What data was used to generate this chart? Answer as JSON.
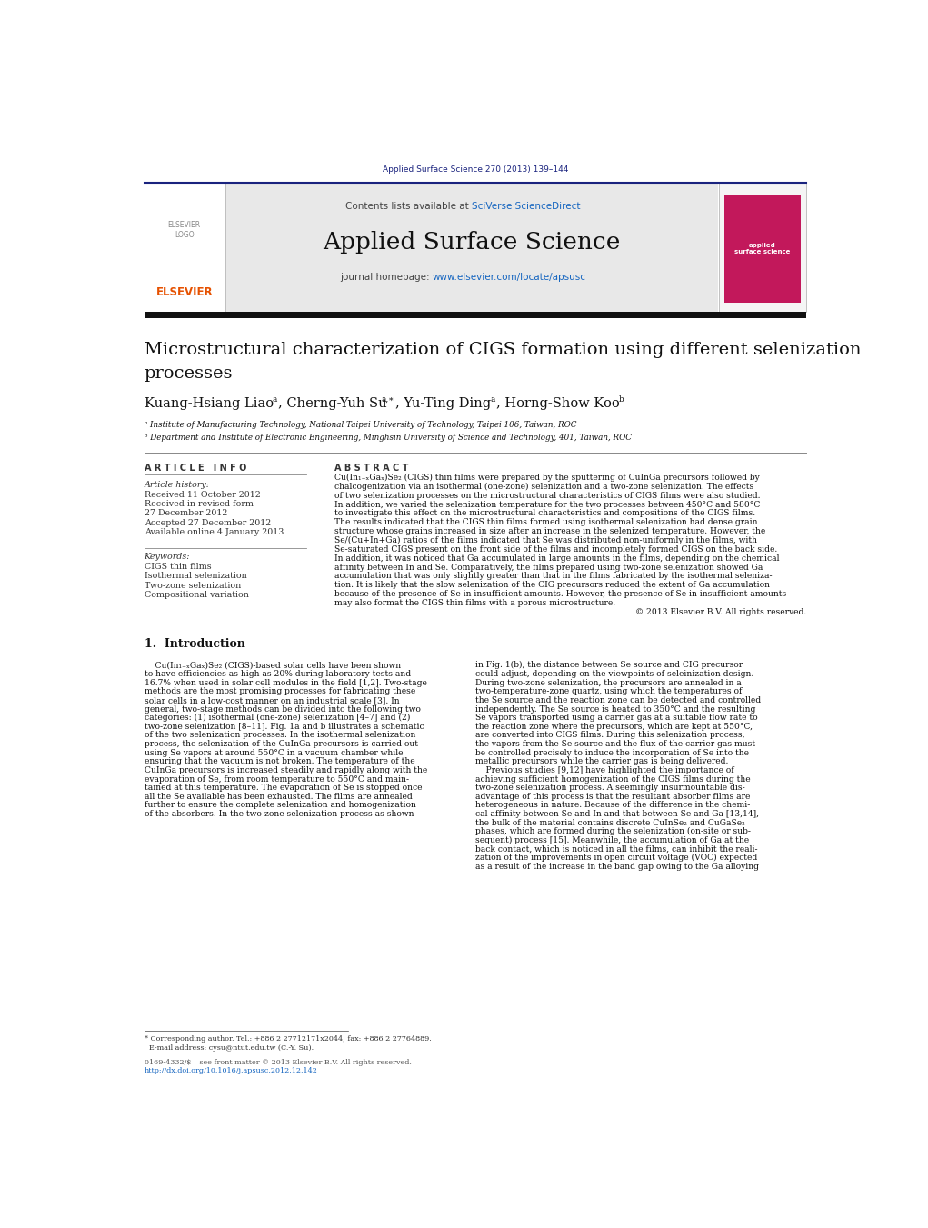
{
  "page_width": 10.21,
  "page_height": 13.51,
  "bg_color": "#ffffff",
  "journal_ref": "Applied Surface Science 270 (2013) 139–144",
  "journal_ref_color": "#1a237e",
  "header_bg": "#e8e8e8",
  "header_link_color": "#1565c0",
  "journal_name": "Applied Surface Science",
  "article_info_title": "A R T I C L E   I N F O",
  "article_history_title": "Article history:",
  "keywords_title": "Keywords:",
  "keywords": "CIGS thin films\nIsothermal selenization\nTwo-zone selenization\nCompositional variation",
  "abstract_title": "A B S T R A C T",
  "abstract_text1": "Cu(In₁₋ₓGaₓ)Se₂ (CIGS) thin films were prepared by the sputtering of CuInGa precursors followed by",
  "abstract_text2": "chalcogenization via an isothermal (one-zone) selenization and a two-zone selenization. The effects",
  "abstract_text3": "of two selenization processes on the microstructural characteristics of CIGS films were also studied.",
  "abstract_text4": "In addition, we varied the selenization temperature for the two processes between 450°C and 580°C",
  "abstract_text5": "to investigate this effect on the microstructural characteristics and compositions of the CIGS films.",
  "abstract_text6": "The results indicated that the CIGS thin films formed using isothermal selenization had dense grain",
  "abstract_text7": "structure whose grains increased in size after an increase in the selenized temperature. However, the",
  "abstract_text8": "Se/(Cu+In+Ga) ratios of the films indicated that Se was distributed non-uniformly in the films, with",
  "abstract_text9": "Se-saturated CIGS present on the front side of the films and incompletely formed CIGS on the back side.",
  "abstract_text10": "In addition, it was noticed that Ga accumulated in large amounts in the films, depending on the chemical",
  "abstract_text11": "affinity between In and Se. Comparatively, the films prepared using two-zone selenization showed Ga",
  "abstract_text12": "accumulation that was only slightly greater than that in the films fabricated by the isothermal seleniza-",
  "abstract_text13": "tion. It is likely that the slow selenization of the CIG precursors reduced the extent of Ga accumulation",
  "abstract_text14": "because of the presence of Se in insufficient amounts. However, the presence of Se in insufficient amounts",
  "abstract_text15": "may also format the CIGS thin films with a porous microstructure.",
  "abstract_copyright": "© 2013 Elsevier B.V. All rights reserved.",
  "intro_title": "1.  Introduction",
  "intro_col1": [
    "    Cu(In₁₋ₓGaₓ)Se₂ (CIGS)-based solar cells have been shown",
    "to have efficiencies as high as 20% during laboratory tests and",
    "16.7% when used in solar cell modules in the field [1,2]. Two-stage",
    "methods are the most promising processes for fabricating these",
    "solar cells in a low-cost manner on an industrial scale [3]. In",
    "general, two-stage methods can be divided into the following two",
    "categories: (1) isothermal (one-zone) selenization [4–7] and (2)",
    "two-zone selenization [8–11]. Fig. 1a and b illustrates a schematic",
    "of the two selenization processes. In the isothermal selenization",
    "process, the selenization of the CuInGa precursors is carried out",
    "using Se vapors at around 550°C in a vacuum chamber while",
    "ensuring that the vacuum is not broken. The temperature of the",
    "CuInGa precursors is increased steadily and rapidly along with the",
    "evaporation of Se, from room temperature to 550°C and main-",
    "tained at this temperature. The evaporation of Se is stopped once",
    "all the Se available has been exhausted. The films are annealed",
    "further to ensure the complete selenization and homogenization",
    "of the absorbers. In the two-zone selenization process as shown"
  ],
  "intro_col2": [
    "in Fig. 1(b), the distance between Se source and CIG precursor",
    "could adjust, depending on the viewpoints of seleinization design.",
    "During two-zone selenization, the precursors are annealed in a",
    "two-temperature-zone quartz, using which the temperatures of",
    "the Se source and the reaction zone can be detected and controlled",
    "independently. The Se source is heated to 350°C and the resulting",
    "Se vapors transported using a carrier gas at a suitable flow rate to",
    "the reaction zone where the precursors, which are kept at 550°C,",
    "are converted into CIGS films. During this selenization process,",
    "the vapors from the Se source and the flux of the carrier gas must",
    "be controlled precisely to induce the incorporation of Se into the",
    "metallic precursors while the carrier gas is being delivered.",
    "    Previous studies [9,12] have highlighted the importance of",
    "achieving sufficient homogenization of the CIGS films during the",
    "two-zone selenization process. A seemingly insurmountable dis-",
    "advantage of this process is that the resultant absorber films are",
    "heterogeneous in nature. Because of the difference in the chemi-",
    "cal affinity between Se and In and that between Se and Ga [13,14],",
    "the bulk of the material contains discrete CuInSe₂ and CuGaSe₂",
    "phases, which are formed during the selenization (on-site or sub-",
    "sequent) process [15]. Meanwhile, the accumulation of Ga at the",
    "back contact, which is noticed in all the films, can inhibit the reali-",
    "zation of the improvements in open circuit voltage (VOC) expected",
    "as a result of the increase in the band gap owing to the Ga alloying"
  ],
  "footer_note1": "* Corresponding author. Tel.: +886 2 27712171x2044; fax: +886 2 27764889.",
  "footer_note2": "  E-mail address: cysu@ntut.edu.tw (C.-Y. Su).",
  "footer_issn1": "0169-4332/$ – see front matter © 2013 Elsevier B.V. All rights reserved.",
  "footer_issn2": "http://dx.doi.org/10.1016/j.apsusc.2012.12.142",
  "elsevier_color": "#e65100",
  "dark_bar_color": "#111111",
  "affil_a": "ᵃ Institute of Manufacturing Technology, National Taipei University of Technology, Taipei 106, Taiwan, ROC",
  "affil_b": "ᵇ Department and Institute of Electronic Engineering, Minghsin University of Science and Technology, 401, Taiwan, ROC"
}
